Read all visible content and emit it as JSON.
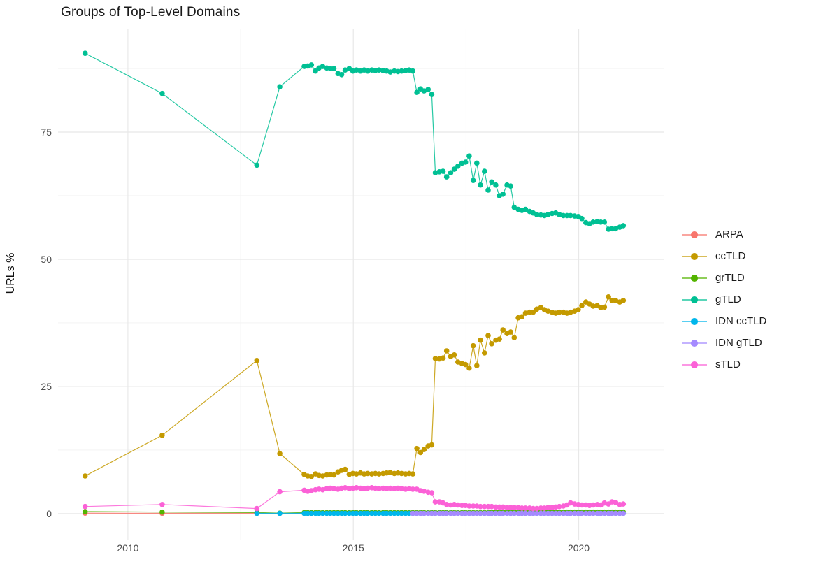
{
  "chart_data": {
    "type": "scatter",
    "title": "Groups of Top-Level Domains",
    "xlabel": "",
    "ylabel": "URLs %",
    "xlim": [
      2008.45,
      2021.9
    ],
    "ylim": [
      -5.1,
      95.2
    ],
    "grid": true,
    "legend_position": "right",
    "x_ticks": {
      "major": [
        2010,
        2015,
        2020
      ],
      "minor": [
        2012.5,
        2017.5
      ]
    },
    "y_ticks": {
      "major": [
        0,
        25,
        50,
        75
      ],
      "minor": [
        12.5,
        37.5,
        62.5,
        87.5
      ]
    },
    "x": [
      2009.05,
      2010.76,
      2012.86,
      2013.37,
      2013.91,
      2013.99,
      2014.07,
      2014.16,
      2014.24,
      2014.32,
      2014.41,
      2014.49,
      2014.57,
      2014.66,
      2014.74,
      2014.82,
      2014.91,
      2014.99,
      2015.07,
      2015.16,
      2015.24,
      2015.32,
      2015.41,
      2015.49,
      2015.57,
      2015.66,
      2015.74,
      2015.82,
      2015.91,
      2015.99,
      2016.07,
      2016.16,
      2016.24,
      2016.32,
      2016.41,
      2016.49,
      2016.57,
      2016.66,
      2016.74,
      2016.82,
      2016.91,
      2016.99,
      2017.07,
      2017.16,
      2017.24,
      2017.32,
      2017.41,
      2017.49,
      2017.57,
      2017.66,
      2017.74,
      2017.82,
      2017.91,
      2017.99,
      2018.07,
      2018.16,
      2018.24,
      2018.32,
      2018.41,
      2018.49,
      2018.57,
      2018.66,
      2018.74,
      2018.82,
      2018.91,
      2018.99,
      2019.07,
      2019.16,
      2019.24,
      2019.32,
      2019.41,
      2019.49,
      2019.57,
      2019.66,
      2019.74,
      2019.82,
      2019.91,
      2019.99,
      2020.07,
      2020.16,
      2020.24,
      2020.32,
      2020.41,
      2020.49,
      2020.57,
      2020.66,
      2020.74,
      2020.82,
      2020.91,
      2020.99
    ],
    "series": [
      {
        "name": "ARPA",
        "color": "#F8766D",
        "values": [
          0.1,
          0.05,
          0.05,
          0.05,
          0.05,
          0.05,
          null,
          null,
          null,
          null,
          null,
          null,
          null,
          null,
          null,
          null,
          null,
          null,
          null,
          null,
          null,
          null,
          null,
          null,
          null,
          null,
          null,
          null,
          null,
          null,
          null,
          null,
          null,
          null,
          null,
          null,
          null,
          null,
          null,
          null,
          null,
          null,
          null,
          null,
          null,
          null,
          null,
          null,
          null,
          null,
          null,
          null,
          null,
          null,
          null,
          null,
          null,
          null,
          null,
          null,
          null,
          null,
          null,
          null,
          null,
          null,
          null,
          null,
          null,
          null,
          null,
          null,
          null,
          null,
          null,
          null,
          null,
          null,
          null,
          null,
          null,
          null,
          null,
          null,
          null,
          null,
          null,
          null,
          null,
          null
        ]
      },
      {
        "name": "ccTLD",
        "color": "#C49A00",
        "values": [
          7.4,
          15.4,
          30.1,
          11.8,
          7.7,
          7.4,
          7.3,
          7.8,
          7.5,
          7.4,
          7.6,
          7.7,
          7.6,
          8.2,
          8.5,
          8.7,
          7.7,
          7.9,
          7.8,
          8.0,
          7.8,
          7.9,
          7.8,
          7.9,
          7.8,
          7.9,
          8.0,
          8.1,
          7.9,
          8.0,
          7.9,
          7.8,
          7.9,
          7.8,
          12.8,
          12.0,
          12.6,
          13.3,
          13.5,
          30.5,
          30.4,
          30.6,
          32.0,
          30.9,
          31.2,
          29.8,
          29.5,
          29.3,
          28.6,
          33.0,
          29.1,
          34.1,
          31.6,
          35.0,
          33.4,
          34.1,
          34.3,
          36.1,
          35.4,
          35.7,
          34.6,
          38.5,
          38.7,
          39.4,
          39.6,
          39.6,
          40.2,
          40.5,
          40.1,
          39.8,
          39.6,
          39.4,
          39.6,
          39.6,
          39.4,
          39.6,
          39.8,
          40.1,
          40.9,
          41.6,
          41.2,
          40.8,
          40.9,
          40.5,
          40.6,
          42.6,
          41.9,
          41.9,
          41.6,
          41.9
        ]
      },
      {
        "name": "grTLD",
        "color": "#53B400",
        "values": [
          0.4,
          0.3,
          0.2,
          0.1,
          0.2,
          0.2,
          0.2,
          0.2,
          0.2,
          0.2,
          0.2,
          0.2,
          0.2,
          0.2,
          0.2,
          0.2,
          0.2,
          0.2,
          0.2,
          0.2,
          0.2,
          0.2,
          0.2,
          0.2,
          0.2,
          0.2,
          0.2,
          0.2,
          0.2,
          0.2,
          0.2,
          0.2,
          0.2,
          0.2,
          0.2,
          0.2,
          0.2,
          0.2,
          0.2,
          0.2,
          0.2,
          0.2,
          0.2,
          0.2,
          0.2,
          0.2,
          0.2,
          0.2,
          0.2,
          0.2,
          0.2,
          0.2,
          0.2,
          0.2,
          0.3,
          0.3,
          0.3,
          0.3,
          0.3,
          0.3,
          0.3,
          0.3,
          0.3,
          0.3,
          0.3,
          0.3,
          0.3,
          0.3,
          0.3,
          0.3,
          0.3,
          0.3,
          0.3,
          0.3,
          0.3,
          0.3,
          0.3,
          0.3,
          0.3,
          0.3,
          0.3,
          0.3,
          0.3,
          0.3,
          0.3,
          0.3,
          0.3,
          0.3,
          0.3,
          0.3
        ]
      },
      {
        "name": "gTLD",
        "color": "#00C094",
        "values": [
          90.5,
          82.6,
          68.5,
          83.9,
          87.9,
          88.0,
          88.2,
          87.0,
          87.6,
          87.9,
          87.6,
          87.5,
          87.5,
          86.5,
          86.3,
          87.2,
          87.5,
          87.0,
          87.2,
          87.0,
          87.2,
          87.0,
          87.2,
          87.1,
          87.2,
          87.1,
          87.0,
          86.8,
          87.0,
          86.9,
          87.0,
          87.1,
          87.2,
          87.0,
          82.8,
          83.5,
          83.1,
          83.4,
          82.4,
          67.0,
          67.2,
          67.3,
          66.2,
          67.0,
          67.7,
          68.3,
          68.9,
          69.1,
          70.3,
          65.5,
          68.9,
          64.6,
          67.3,
          63.6,
          65.2,
          64.6,
          62.5,
          62.8,
          64.6,
          64.4,
          60.2,
          59.8,
          59.6,
          59.8,
          59.4,
          59.1,
          58.8,
          58.7,
          58.6,
          58.8,
          59.0,
          59.1,
          58.8,
          58.6,
          58.6,
          58.6,
          58.5,
          58.4,
          58.0,
          57.2,
          57.0,
          57.3,
          57.4,
          57.3,
          57.3,
          55.9,
          56.0,
          56.0,
          56.3,
          56.6
        ]
      },
      {
        "name": "IDN ccTLD",
        "color": "#00B6EB",
        "values": [
          null,
          null,
          0.05,
          0.05,
          0.05,
          0.05,
          0.05,
          0.05,
          0.05,
          0.05,
          0.05,
          0.05,
          0.05,
          0.05,
          0.05,
          0.05,
          0.05,
          0.05,
          0.05,
          0.05,
          0.05,
          0.05,
          0.05,
          0.05,
          0.05,
          0.05,
          0.05,
          0.05,
          0.05,
          0.05,
          0.05,
          0.05,
          0.05,
          0.05,
          0.05,
          0.05,
          0.05,
          0.05,
          0.05,
          0.05,
          0.05,
          0.05,
          0.05,
          0.05,
          0.05,
          0.05,
          0.05,
          0.05,
          0.05,
          0.05,
          0.05,
          0.05,
          0.05,
          0.05,
          0.05,
          0.05,
          0.05,
          0.05,
          0.05,
          0.05,
          0.05,
          0.05,
          0.05,
          0.05,
          0.05,
          0.05,
          0.05,
          0.05,
          0.05,
          0.05,
          0.05,
          0.05,
          0.05,
          0.05,
          0.05,
          0.05,
          0.05,
          0.05,
          0.05,
          0.05,
          0.05,
          0.05,
          0.05,
          0.05,
          0.05,
          0.05,
          0.05,
          0.05,
          0.05,
          0.05
        ]
      },
      {
        "name": "IDN gTLD",
        "color": "#A58AFF",
        "values": [
          null,
          null,
          null,
          null,
          null,
          null,
          null,
          null,
          null,
          null,
          null,
          null,
          null,
          null,
          null,
          null,
          null,
          null,
          null,
          null,
          null,
          null,
          null,
          null,
          null,
          null,
          null,
          null,
          null,
          null,
          null,
          null,
          null,
          0.05,
          0.05,
          0.05,
          0.05,
          0.05,
          0.05,
          0.05,
          0.05,
          0.05,
          0.05,
          0.05,
          0.05,
          0.05,
          0.05,
          0.05,
          0.05,
          0.05,
          0.05,
          0.05,
          0.05,
          0.05,
          0.05,
          0.05,
          0.05,
          0.05,
          0.05,
          0.05,
          0.05,
          0.05,
          0.05,
          0.05,
          0.05,
          0.05,
          0.05,
          0.05,
          0.05,
          0.05,
          0.05,
          0.05,
          0.05,
          0.05,
          0.05,
          0.05,
          0.05,
          0.05,
          0.05,
          0.05,
          0.05,
          0.05,
          0.05,
          0.05,
          0.05,
          0.05,
          0.05,
          0.05,
          0.05,
          0.05
        ]
      },
      {
        "name": "sTLD",
        "color": "#FB61D7",
        "values": [
          1.4,
          1.8,
          1.0,
          4.3,
          4.6,
          4.4,
          4.5,
          4.7,
          4.8,
          4.7,
          4.9,
          5.0,
          4.9,
          4.8,
          5.0,
          5.1,
          4.9,
          5.0,
          5.1,
          5.0,
          4.9,
          5.0,
          5.1,
          5.0,
          4.9,
          5.0,
          4.9,
          5.0,
          4.9,
          5.0,
          4.9,
          4.8,
          4.9,
          4.8,
          4.8,
          4.5,
          4.4,
          4.2,
          4.1,
          2.3,
          2.3,
          2.1,
          1.8,
          1.7,
          1.8,
          1.7,
          1.6,
          1.6,
          1.5,
          1.5,
          1.5,
          1.4,
          1.4,
          1.4,
          1.4,
          1.3,
          1.3,
          1.3,
          1.2,
          1.2,
          1.2,
          1.2,
          1.1,
          1.1,
          1.1,
          1.0,
          1.0,
          1.1,
          1.1,
          1.2,
          1.2,
          1.3,
          1.4,
          1.5,
          1.7,
          2.1,
          1.9,
          1.8,
          1.7,
          1.7,
          1.6,
          1.7,
          1.8,
          1.7,
          2.1,
          1.9,
          2.3,
          2.2,
          1.8,
          1.9
        ]
      }
    ]
  },
  "legend": {
    "items": [
      {
        "label": "ARPA",
        "color": "#F8766D"
      },
      {
        "label": "ccTLD",
        "color": "#C49A00"
      },
      {
        "label": "grTLD",
        "color": "#53B400"
      },
      {
        "label": "gTLD",
        "color": "#00C094"
      },
      {
        "label": "IDN ccTLD",
        "color": "#00B6EB"
      },
      {
        "label": "IDN gTLD",
        "color": "#A58AFF"
      },
      {
        "label": "sTLD",
        "color": "#FB61D7"
      }
    ]
  },
  "style": {
    "grid_major_color": "#e8e8e8",
    "grid_minor_color": "#f2f2f2",
    "text_color": "#4d4d4d",
    "title_color": "#1a1a1a",
    "background": "#ffffff"
  }
}
